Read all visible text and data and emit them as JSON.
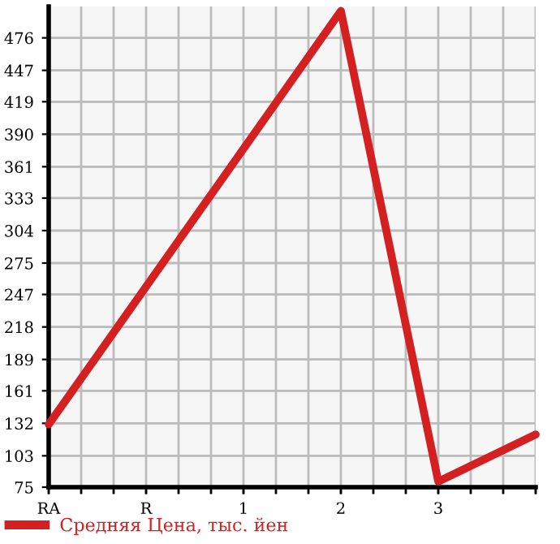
{
  "chart_data": {
    "type": "line",
    "categories": [
      "RA",
      "R",
      "1",
      "2",
      "3",
      null
    ],
    "series": [
      {
        "name": "Средняя Цена, тыс. йен",
        "color": "#d42020",
        "values": [
          131,
          254,
          377,
          500,
          80,
          122
        ]
      }
    ],
    "ylim": [
      75,
      504
    ],
    "yticks": [
      75,
      103,
      132,
      161,
      189,
      218,
      247,
      275,
      304,
      333,
      361,
      390,
      419,
      447,
      476
    ],
    "grid": true,
    "legend": "bottom",
    "marker": "none",
    "line_style": "solid"
  }
}
